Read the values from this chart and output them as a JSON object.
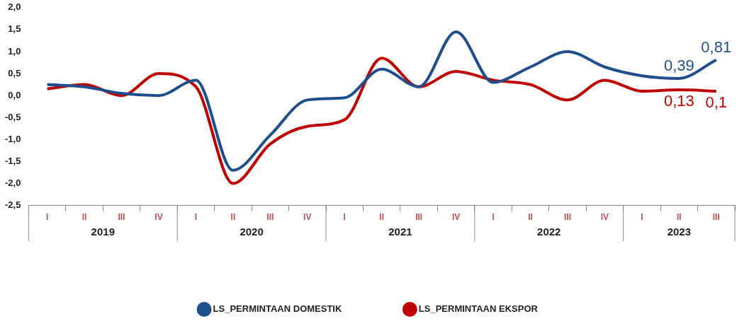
{
  "chart_data": {
    "type": "line",
    "categories": [
      "I",
      "II",
      "III",
      "IV",
      "I",
      "II",
      "III",
      "IV",
      "I",
      "II",
      "III",
      "IV",
      "I",
      "II",
      "III",
      "IV",
      "I",
      "II",
      "III"
    ],
    "annotations": [
      "2019",
      "2020",
      "2021",
      "2022",
      "2023"
    ],
    "series": [
      {
        "name": "LS_PERMINTAAN DOMESTIK",
        "color": "#1f4e8c",
        "values": [
          0.25,
          0.2,
          0.05,
          0.0,
          0.35,
          -1.7,
          -0.9,
          -0.1,
          -0.05,
          0.6,
          0.2,
          1.45,
          0.3,
          0.65,
          1.0,
          0.65,
          0.45,
          0.39,
          0.81
        ],
        "value_labels": [
          null,
          null,
          null,
          null,
          null,
          null,
          null,
          null,
          null,
          null,
          null,
          null,
          null,
          null,
          null,
          null,
          null,
          "0,39",
          "0,81"
        ]
      },
      {
        "name": "LS_PERMINTAAN EKSPOR",
        "color": "#c00000",
        "values": [
          0.15,
          0.25,
          0.0,
          0.5,
          0.2,
          -2.0,
          -1.1,
          -0.7,
          -0.55,
          0.85,
          0.2,
          0.55,
          0.35,
          0.25,
          -0.1,
          0.35,
          0.1,
          0.13,
          0.1
        ],
        "value_labels": [
          null,
          null,
          null,
          null,
          null,
          null,
          null,
          null,
          null,
          null,
          null,
          null,
          null,
          null,
          null,
          null,
          null,
          "0,13",
          "0,1"
        ]
      }
    ],
    "ylim": [
      -2.5,
      2.0
    ],
    "yticks": [
      {
        "value": -2.5,
        "label": "-2,5"
      },
      {
        "value": -2.0,
        "label": "-2,0"
      },
      {
        "value": -1.5,
        "label": "-1,5"
      },
      {
        "value": -1.0,
        "label": "-1,0"
      },
      {
        "value": -0.5,
        "label": "-0,5"
      },
      {
        "value": 0,
        "label": "0,0"
      },
      {
        "value": 0.5,
        "label": "0,5"
      },
      {
        "value": 1.0,
        "label": "1,0"
      },
      {
        "value": 1.5,
        "label": "1,5"
      },
      {
        "value": 2.0,
        "label": "2,0"
      }
    ],
    "grid": false,
    "legend": "bottom",
    "marker": "none",
    "line_style": "solid"
  }
}
